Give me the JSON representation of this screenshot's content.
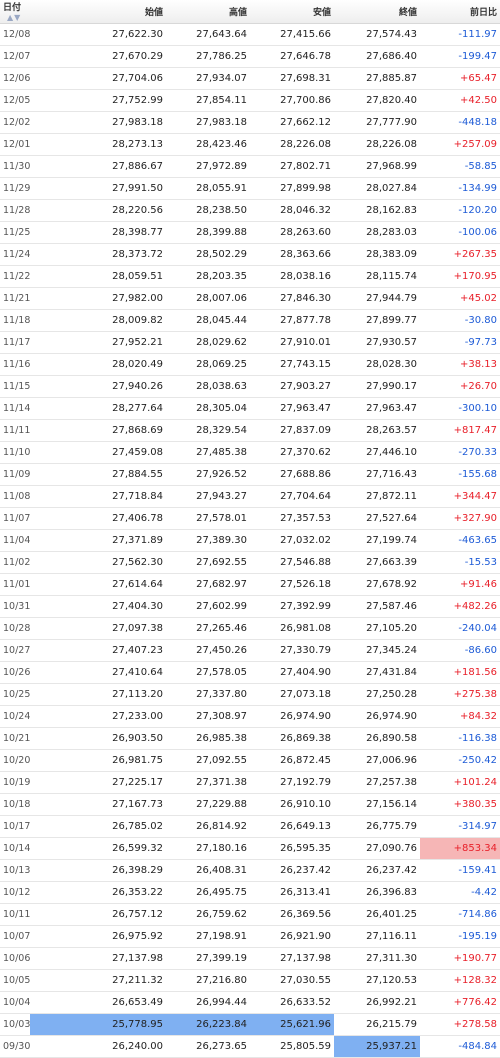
{
  "headers": [
    "日付",
    "始値",
    "高値",
    "安値",
    "終値",
    "前日比"
  ],
  "sort_icon": "sort-arrows-icon",
  "rows": [
    {
      "date": "12/08",
      "open": "27,622.30",
      "high": "27,643.64",
      "low": "27,415.66",
      "close": "27,574.43",
      "change": "-111.97"
    },
    {
      "date": "12/07",
      "open": "27,670.29",
      "high": "27,786.25",
      "low": "27,646.78",
      "close": "27,686.40",
      "change": "-199.47"
    },
    {
      "date": "12/06",
      "open": "27,704.06",
      "high": "27,934.07",
      "low": "27,698.31",
      "close": "27,885.87",
      "change": "+65.47"
    },
    {
      "date": "12/05",
      "open": "27,752.99",
      "high": "27,854.11",
      "low": "27,700.86",
      "close": "27,820.40",
      "change": "+42.50"
    },
    {
      "date": "12/02",
      "open": "27,983.18",
      "high": "27,983.18",
      "low": "27,662.12",
      "close": "27,777.90",
      "change": "-448.18"
    },
    {
      "date": "12/01",
      "open": "28,273.13",
      "high": "28,423.46",
      "low": "28,226.08",
      "close": "28,226.08",
      "change": "+257.09"
    },
    {
      "date": "11/30",
      "open": "27,886.67",
      "high": "27,972.89",
      "low": "27,802.71",
      "close": "27,968.99",
      "change": "-58.85"
    },
    {
      "date": "11/29",
      "open": "27,991.50",
      "high": "28,055.91",
      "low": "27,899.98",
      "close": "28,027.84",
      "change": "-134.99"
    },
    {
      "date": "11/28",
      "open": "28,220.56",
      "high": "28,238.50",
      "low": "28,046.32",
      "close": "28,162.83",
      "change": "-120.20"
    },
    {
      "date": "11/25",
      "open": "28,398.77",
      "high": "28,399.88",
      "low": "28,263.60",
      "close": "28,283.03",
      "change": "-100.06"
    },
    {
      "date": "11/24",
      "open": "28,373.72",
      "high": "28,502.29",
      "low": "28,363.66",
      "close": "28,383.09",
      "change": "+267.35"
    },
    {
      "date": "11/22",
      "open": "28,059.51",
      "high": "28,203.35",
      "low": "28,038.16",
      "close": "28,115.74",
      "change": "+170.95"
    },
    {
      "date": "11/21",
      "open": "27,982.00",
      "high": "28,007.06",
      "low": "27,846.30",
      "close": "27,944.79",
      "change": "+45.02"
    },
    {
      "date": "11/18",
      "open": "28,009.82",
      "high": "28,045.44",
      "low": "27,877.78",
      "close": "27,899.77",
      "change": "-30.80"
    },
    {
      "date": "11/17",
      "open": "27,952.21",
      "high": "28,029.62",
      "low": "27,910.01",
      "close": "27,930.57",
      "change": "-97.73"
    },
    {
      "date": "11/16",
      "open": "28,020.49",
      "high": "28,069.25",
      "low": "27,743.15",
      "close": "28,028.30",
      "change": "+38.13"
    },
    {
      "date": "11/15",
      "open": "27,940.26",
      "high": "28,038.63",
      "low": "27,903.27",
      "close": "27,990.17",
      "change": "+26.70"
    },
    {
      "date": "11/14",
      "open": "28,277.64",
      "high": "28,305.04",
      "low": "27,963.47",
      "close": "27,963.47",
      "change": "-300.10"
    },
    {
      "date": "11/11",
      "open": "27,868.69",
      "high": "28,329.54",
      "low": "27,837.09",
      "close": "28,263.57",
      "change": "+817.47"
    },
    {
      "date": "11/10",
      "open": "27,459.08",
      "high": "27,485.38",
      "low": "27,370.62",
      "close": "27,446.10",
      "change": "-270.33"
    },
    {
      "date": "11/09",
      "open": "27,884.55",
      "high": "27,926.52",
      "low": "27,688.86",
      "close": "27,716.43",
      "change": "-155.68"
    },
    {
      "date": "11/08",
      "open": "27,718.84",
      "high": "27,943.27",
      "low": "27,704.64",
      "close": "27,872.11",
      "change": "+344.47"
    },
    {
      "date": "11/07",
      "open": "27,406.78",
      "high": "27,578.01",
      "low": "27,357.53",
      "close": "27,527.64",
      "change": "+327.90"
    },
    {
      "date": "11/04",
      "open": "27,371.89",
      "high": "27,389.30",
      "low": "27,032.02",
      "close": "27,199.74",
      "change": "-463.65"
    },
    {
      "date": "11/02",
      "open": "27,562.30",
      "high": "27,692.55",
      "low": "27,546.88",
      "close": "27,663.39",
      "change": "-15.53"
    },
    {
      "date": "11/01",
      "open": "27,614.64",
      "high": "27,682.97",
      "low": "27,526.18",
      "close": "27,678.92",
      "change": "+91.46"
    },
    {
      "date": "10/31",
      "open": "27,404.30",
      "high": "27,602.99",
      "low": "27,392.99",
      "close": "27,587.46",
      "change": "+482.26"
    },
    {
      "date": "10/28",
      "open": "27,097.38",
      "high": "27,265.46",
      "low": "26,981.08",
      "close": "27,105.20",
      "change": "-240.04"
    },
    {
      "date": "10/27",
      "open": "27,407.23",
      "high": "27,450.26",
      "low": "27,330.79",
      "close": "27,345.24",
      "change": "-86.60"
    },
    {
      "date": "10/26",
      "open": "27,410.64",
      "high": "27,578.05",
      "low": "27,404.90",
      "close": "27,431.84",
      "change": "+181.56"
    },
    {
      "date": "10/25",
      "open": "27,113.20",
      "high": "27,337.80",
      "low": "27,073.18",
      "close": "27,250.28",
      "change": "+275.38"
    },
    {
      "date": "10/24",
      "open": "27,233.00",
      "high": "27,308.97",
      "low": "26,974.90",
      "close": "26,974.90",
      "change": "+84.32"
    },
    {
      "date": "10/21",
      "open": "26,903.50",
      "high": "26,985.38",
      "low": "26,869.38",
      "close": "26,890.58",
      "change": "-116.38"
    },
    {
      "date": "10/20",
      "open": "26,981.75",
      "high": "27,092.55",
      "low": "26,872.45",
      "close": "27,006.96",
      "change": "-250.42"
    },
    {
      "date": "10/19",
      "open": "27,225.17",
      "high": "27,371.38",
      "low": "27,192.79",
      "close": "27,257.38",
      "change": "+101.24"
    },
    {
      "date": "10/18",
      "open": "27,167.73",
      "high": "27,229.88",
      "low": "26,910.10",
      "close": "27,156.14",
      "change": "+380.35"
    },
    {
      "date": "10/17",
      "open": "26,785.02",
      "high": "26,814.92",
      "low": "26,649.13",
      "close": "26,775.79",
      "change": "-314.97"
    },
    {
      "date": "10/14",
      "open": "26,599.32",
      "high": "27,180.16",
      "low": "26,595.35",
      "close": "27,090.76",
      "change": "+853.34",
      "hl_change": "red"
    },
    {
      "date": "10/13",
      "open": "26,398.29",
      "high": "26,408.31",
      "low": "26,237.42",
      "close": "26,237.42",
      "change": "-159.41"
    },
    {
      "date": "10/12",
      "open": "26,353.22",
      "high": "26,495.75",
      "low": "26,313.41",
      "close": "26,396.83",
      "change": "-4.42"
    },
    {
      "date": "10/11",
      "open": "26,757.12",
      "high": "26,759.62",
      "low": "26,369.56",
      "close": "26,401.25",
      "change": "-714.86"
    },
    {
      "date": "10/07",
      "open": "26,975.92",
      "high": "27,198.91",
      "low": "26,921.90",
      "close": "27,116.11",
      "change": "-195.19"
    },
    {
      "date": "10/06",
      "open": "27,137.98",
      "high": "27,399.19",
      "low": "27,137.98",
      "close": "27,311.30",
      "change": "+190.77"
    },
    {
      "date": "10/05",
      "open": "27,211.32",
      "high": "27,216.80",
      "low": "27,030.55",
      "close": "27,120.53",
      "change": "+128.32"
    },
    {
      "date": "10/04",
      "open": "26,653.49",
      "high": "26,994.44",
      "low": "26,633.52",
      "close": "26,992.21",
      "change": "+776.42"
    },
    {
      "date": "10/03",
      "open": "25,778.95",
      "high": "26,223.84",
      "low": "25,621.96",
      "close": "26,215.79",
      "change": "+278.58",
      "hl_open": "blue",
      "hl_high": "blue",
      "hl_low": "blue"
    },
    {
      "date": "09/30",
      "open": "26,240.00",
      "high": "26,273.65",
      "low": "25,805.59",
      "close": "25,937.21",
      "change": "-484.84",
      "hl_close": "blue"
    }
  ]
}
